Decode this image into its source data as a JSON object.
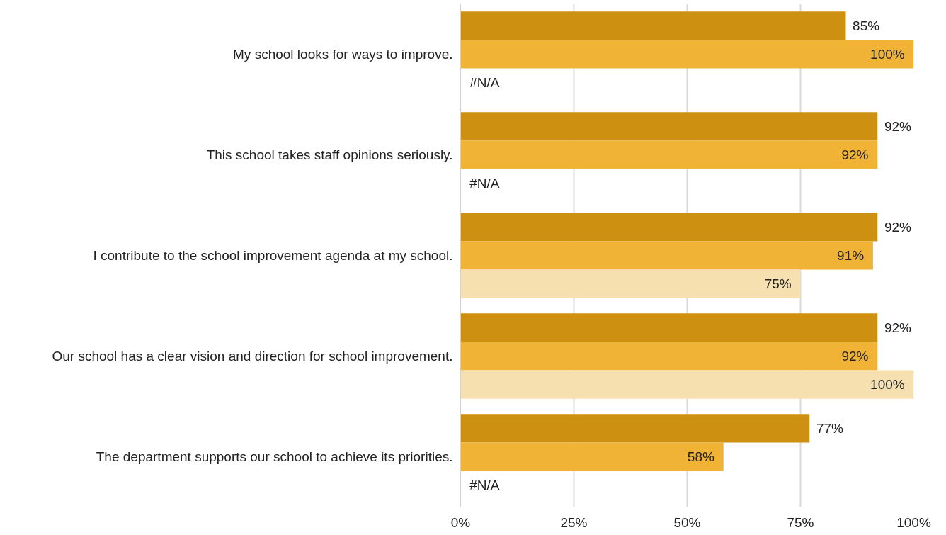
{
  "chart_data": {
    "type": "bar",
    "orientation": "horizontal",
    "categories": [
      "My school looks for ways to improve.",
      "This school takes staff opinions seriously.",
      "I contribute to the school improvement agenda at my school.",
      "Our school has a clear vision and direction for school improvement.",
      "The department supports our school to achieve its priorities."
    ],
    "series": [
      {
        "color": "#cd9010",
        "values": [
          85,
          92,
          92,
          92,
          77
        ],
        "value_labels": [
          "85%",
          "92%",
          "92%",
          "92%",
          "77%"
        ]
      },
      {
        "color": "#f0b336",
        "values": [
          100,
          92,
          91,
          92,
          58
        ],
        "value_labels": [
          "100%",
          "92%",
          "91%",
          "92%",
          "58%"
        ]
      },
      {
        "color": "#f7e0b0",
        "values": [
          null,
          null,
          75,
          100,
          null
        ],
        "value_labels": [
          "#N/A",
          "#N/A",
          "75%",
          "100%",
          "#N/A"
        ]
      }
    ],
    "xlim": [
      0,
      100
    ],
    "xticks": [
      {
        "value": 0,
        "label": "0%"
      },
      {
        "value": 25,
        "label": "25%"
      },
      {
        "value": 50,
        "label": "50%"
      },
      {
        "value": 75,
        "label": "75%"
      },
      {
        "value": 100,
        "label": "100%"
      }
    ],
    "grid": "x"
  }
}
